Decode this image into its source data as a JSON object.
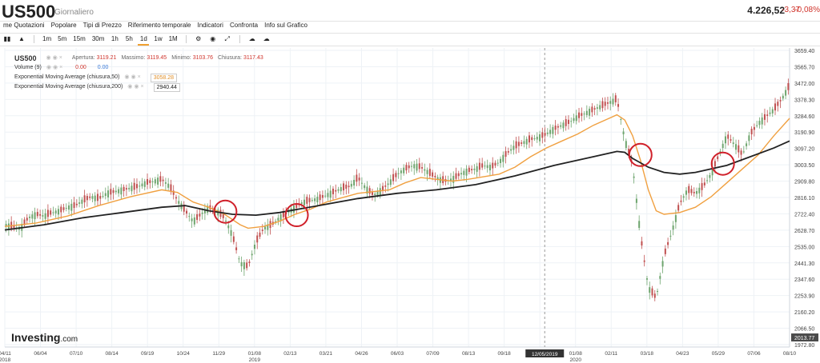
{
  "header": {
    "symbol": "US500",
    "period": "Giornaliero",
    "price": "4.226,52",
    "change": "-3,37",
    "change_pct": "-0,08%"
  },
  "menu": {
    "items": [
      "me Quotazioni",
      "Popolare",
      "Tipi di Prezzo",
      "Riferimento temporale",
      "Indicatori",
      "Confronta",
      "Info sul Grafico"
    ]
  },
  "toolbar": {
    "buttons": [
      "1m",
      "5m",
      "15m",
      "30m",
      "1h",
      "5h",
      "1d",
      "1w",
      "1M"
    ],
    "active": "1d"
  },
  "legend": {
    "symbol": "US500",
    "ohlc": [
      {
        "label": "Apertura:",
        "value": "3119.21"
      },
      {
        "label": "Massimo:",
        "value": "3119.45"
      },
      {
        "label": "Minimo:",
        "value": "3103.76"
      },
      {
        "label": "Chiusura:",
        "value": "3117.43"
      }
    ],
    "volume_label": "Volume (9)",
    "volume_value_1": "0.00",
    "volume_value_2": "0.00",
    "ema50_label": "Exponential Moving Average (chiusura,50)",
    "ema50_value": "3058.28",
    "ema200_label": "Exponential Moving Average (chiusura,200)",
    "ema200_value": "2940.44"
  },
  "watermark": {
    "brand": "Investing",
    "suffix": ".com"
  },
  "chart_data": {
    "type": "line",
    "y_ticks": [
      "3659.40",
      "3565.70",
      "3472.00",
      "3378.30",
      "3284.60",
      "3190.90",
      "3097.20",
      "3003.50",
      "2909.80",
      "2816.10",
      "2722.40",
      "2628.70",
      "2535.00",
      "2441.30",
      "2347.60",
      "2253.90",
      "2160.20",
      "2066.50",
      "1972.80"
    ],
    "y_marker": "2013.77",
    "ylim": [
      1972.8,
      3659.4
    ],
    "x_ticks": [
      {
        "label": "04/11",
        "year": "2018"
      },
      {
        "label": "06/04",
        "year": ""
      },
      {
        "label": "07/10",
        "year": ""
      },
      {
        "label": "08/14",
        "year": ""
      },
      {
        "label": "09/19",
        "year": ""
      },
      {
        "label": "10/24",
        "year": ""
      },
      {
        "label": "11/29",
        "year": ""
      },
      {
        "label": "01/08",
        "year": "2019"
      },
      {
        "label": "02/13",
        "year": ""
      },
      {
        "label": "03/21",
        "year": ""
      },
      {
        "label": "04/26",
        "year": ""
      },
      {
        "label": "06/03",
        "year": ""
      },
      {
        "label": "07/09",
        "year": ""
      },
      {
        "label": "08/13",
        "year": ""
      },
      {
        "label": "09/18",
        "year": ""
      },
      {
        "label": "10/23",
        "year": ""
      },
      {
        "label": "01/08",
        "year": "2020"
      },
      {
        "label": "02/11",
        "year": ""
      },
      {
        "label": "03/18",
        "year": ""
      },
      {
        "label": "04/23",
        "year": ""
      },
      {
        "label": "05/29",
        "year": ""
      },
      {
        "label": "07/06",
        "year": ""
      },
      {
        "label": "08/10",
        "year": ""
      }
    ],
    "crosshair_date": "12/05/2019",
    "x_span": [
      0,
      100
    ],
    "price_close": [
      [
        0,
        2660
      ],
      [
        1,
        2650
      ],
      [
        2,
        2640
      ],
      [
        3,
        2700
      ],
      [
        4,
        2720
      ],
      [
        5,
        2710
      ],
      [
        6,
        2730
      ],
      [
        7,
        2740
      ],
      [
        8,
        2760
      ],
      [
        9,
        2770
      ],
      [
        10,
        2800
      ],
      [
        11,
        2820
      ],
      [
        12,
        2810
      ],
      [
        13,
        2840
      ],
      [
        14,
        2850
      ],
      [
        15,
        2860
      ],
      [
        16,
        2870
      ],
      [
        17,
        2880
      ],
      [
        18,
        2900
      ],
      [
        19,
        2910
      ],
      [
        20,
        2920
      ],
      [
        21,
        2880
      ],
      [
        22,
        2800
      ],
      [
        23,
        2740
      ],
      [
        24,
        2680
      ],
      [
        25,
        2720
      ],
      [
        26,
        2760
      ],
      [
        27,
        2740
      ],
      [
        28,
        2700
      ],
      [
        29,
        2600
      ],
      [
        30,
        2440
      ],
      [
        31,
        2420
      ],
      [
        32,
        2560
      ],
      [
        33,
        2640
      ],
      [
        34,
        2660
      ],
      [
        35,
        2700
      ],
      [
        36,
        2730
      ],
      [
        37,
        2760
      ],
      [
        38,
        2790
      ],
      [
        39,
        2800
      ],
      [
        40,
        2810
      ],
      [
        41,
        2830
      ],
      [
        42,
        2850
      ],
      [
        43,
        2870
      ],
      [
        44,
        2880
      ],
      [
        45,
        2930
      ],
      [
        46,
        2870
      ],
      [
        47,
        2830
      ],
      [
        48,
        2860
      ],
      [
        49,
        2900
      ],
      [
        50,
        2950
      ],
      [
        51,
        2980
      ],
      [
        52,
        3000
      ],
      [
        53,
        2990
      ],
      [
        54,
        2960
      ],
      [
        55,
        2930
      ],
      [
        56,
        2910
      ],
      [
        57,
        2920
      ],
      [
        58,
        2950
      ],
      [
        59,
        2970
      ],
      [
        60,
        2980
      ],
      [
        61,
        3000
      ],
      [
        62,
        2990
      ],
      [
        63,
        3020
      ],
      [
        64,
        3070
      ],
      [
        65,
        3110
      ],
      [
        66,
        3130
      ],
      [
        67,
        3150
      ],
      [
        68,
        3160
      ],
      [
        69,
        3180
      ],
      [
        70,
        3210
      ],
      [
        71,
        3230
      ],
      [
        72,
        3250
      ],
      [
        73,
        3280
      ],
      [
        74,
        3300
      ],
      [
        75,
        3320
      ],
      [
        76,
        3340
      ],
      [
        77,
        3360
      ],
      [
        78,
        3380
      ],
      [
        79,
        3150
      ],
      [
        80,
        3000
      ],
      [
        81,
        2600
      ],
      [
        82,
        2300
      ],
      [
        83,
        2240
      ],
      [
        84,
        2480
      ],
      [
        85,
        2620
      ],
      [
        86,
        2780
      ],
      [
        87,
        2860
      ],
      [
        88,
        2840
      ],
      [
        89,
        2880
      ],
      [
        90,
        2950
      ],
      [
        91,
        3060
      ],
      [
        92,
        3170
      ],
      [
        93,
        3120
      ],
      [
        94,
        3060
      ],
      [
        95,
        3180
      ],
      [
        96,
        3240
      ],
      [
        97,
        3280
      ],
      [
        98,
        3320
      ],
      [
        99,
        3380
      ],
      [
        100,
        3460
      ]
    ],
    "ema50": [
      [
        0,
        2650
      ],
      [
        4,
        2670
      ],
      [
        8,
        2710
      ],
      [
        12,
        2770
      ],
      [
        16,
        2820
      ],
      [
        20,
        2860
      ],
      [
        22,
        2845
      ],
      [
        24,
        2790
      ],
      [
        26,
        2760
      ],
      [
        28,
        2720
      ],
      [
        30,
        2660
      ],
      [
        31,
        2640
      ],
      [
        33,
        2650
      ],
      [
        35,
        2680
      ],
      [
        37,
        2720
      ],
      [
        39,
        2750
      ],
      [
        41,
        2790
      ],
      [
        43,
        2815
      ],
      [
        45,
        2840
      ],
      [
        47,
        2850
      ],
      [
        49,
        2860
      ],
      [
        51,
        2900
      ],
      [
        53,
        2930
      ],
      [
        55,
        2920
      ],
      [
        57,
        2910
      ],
      [
        59,
        2920
      ],
      [
        61,
        2935
      ],
      [
        63,
        2950
      ],
      [
        65,
        2990
      ],
      [
        67,
        3050
      ],
      [
        69,
        3100
      ],
      [
        71,
        3140
      ],
      [
        73,
        3180
      ],
      [
        75,
        3230
      ],
      [
        77,
        3270
      ],
      [
        78,
        3290
      ],
      [
        79,
        3260
      ],
      [
        80,
        3170
      ],
      [
        81,
        3030
      ],
      [
        82,
        2860
      ],
      [
        83,
        2740
      ],
      [
        84,
        2720
      ],
      [
        86,
        2730
      ],
      [
        88,
        2760
      ],
      [
        90,
        2820
      ],
      [
        92,
        2900
      ],
      [
        94,
        2980
      ],
      [
        96,
        3060
      ],
      [
        98,
        3170
      ],
      [
        100,
        3270
      ]
    ],
    "ema200": [
      [
        0,
        2630
      ],
      [
        5,
        2660
      ],
      [
        10,
        2700
      ],
      [
        15,
        2730
      ],
      [
        20,
        2760
      ],
      [
        23,
        2770
      ],
      [
        26,
        2740
      ],
      [
        29,
        2720
      ],
      [
        32,
        2715
      ],
      [
        35,
        2730
      ],
      [
        40,
        2770
      ],
      [
        45,
        2810
      ],
      [
        50,
        2840
      ],
      [
        55,
        2860
      ],
      [
        60,
        2890
      ],
      [
        65,
        2940
      ],
      [
        70,
        3000
      ],
      [
        75,
        3050
      ],
      [
        78,
        3080
      ],
      [
        79,
        3075
      ],
      [
        80,
        3040
      ],
      [
        82,
        2990
      ],
      [
        84,
        2960
      ],
      [
        86,
        2950
      ],
      [
        88,
        2960
      ],
      [
        90,
        2980
      ],
      [
        92,
        3000
      ],
      [
        95,
        3050
      ],
      [
        98,
        3100
      ],
      [
        100,
        3140
      ]
    ],
    "highlight_circles": [
      {
        "x": 28.1,
        "y": 2735
      },
      {
        "x": 37.2,
        "y": 2715
      },
      {
        "x": 81.0,
        "y": 3060
      },
      {
        "x": 91.5,
        "y": 3010
      }
    ],
    "colors": {
      "candle": "#6ea56e",
      "candle_down": "#c05050",
      "ema50": "#f0a040",
      "ema200": "#222222",
      "circle": "#d0202a",
      "grid": "#eef2f6"
    }
  }
}
